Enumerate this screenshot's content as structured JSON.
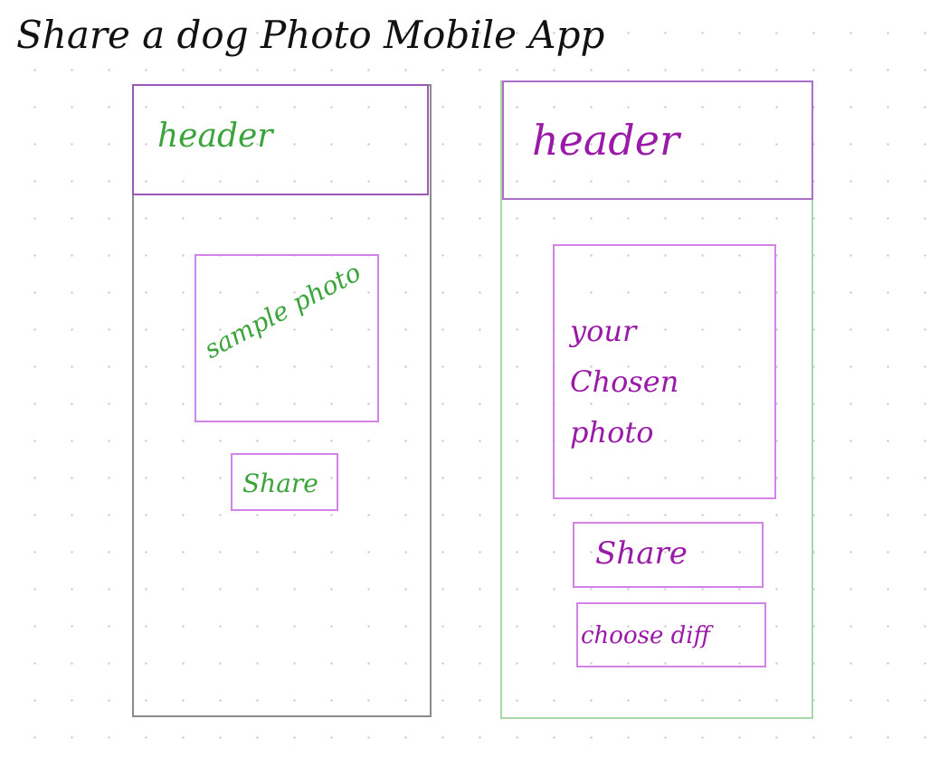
{
  "title": "Share a dog Photo Mobile App",
  "left_mockup": {
    "header_label": "header",
    "photo_label": "sample photo",
    "share_label": "Share"
  },
  "right_mockup": {
    "header_label": "header",
    "photo_label": "your\nChosen\nphoto",
    "share_label": "Share",
    "choose_label": "choose diff"
  },
  "colors": {
    "ink": "#111111",
    "green_text": "#3aa43a",
    "purple_text": "#9a1aa8",
    "box_border": "#d184e6",
    "left_phone_border": "#8a8a8a",
    "right_phone_border": "#a8d8a8"
  }
}
